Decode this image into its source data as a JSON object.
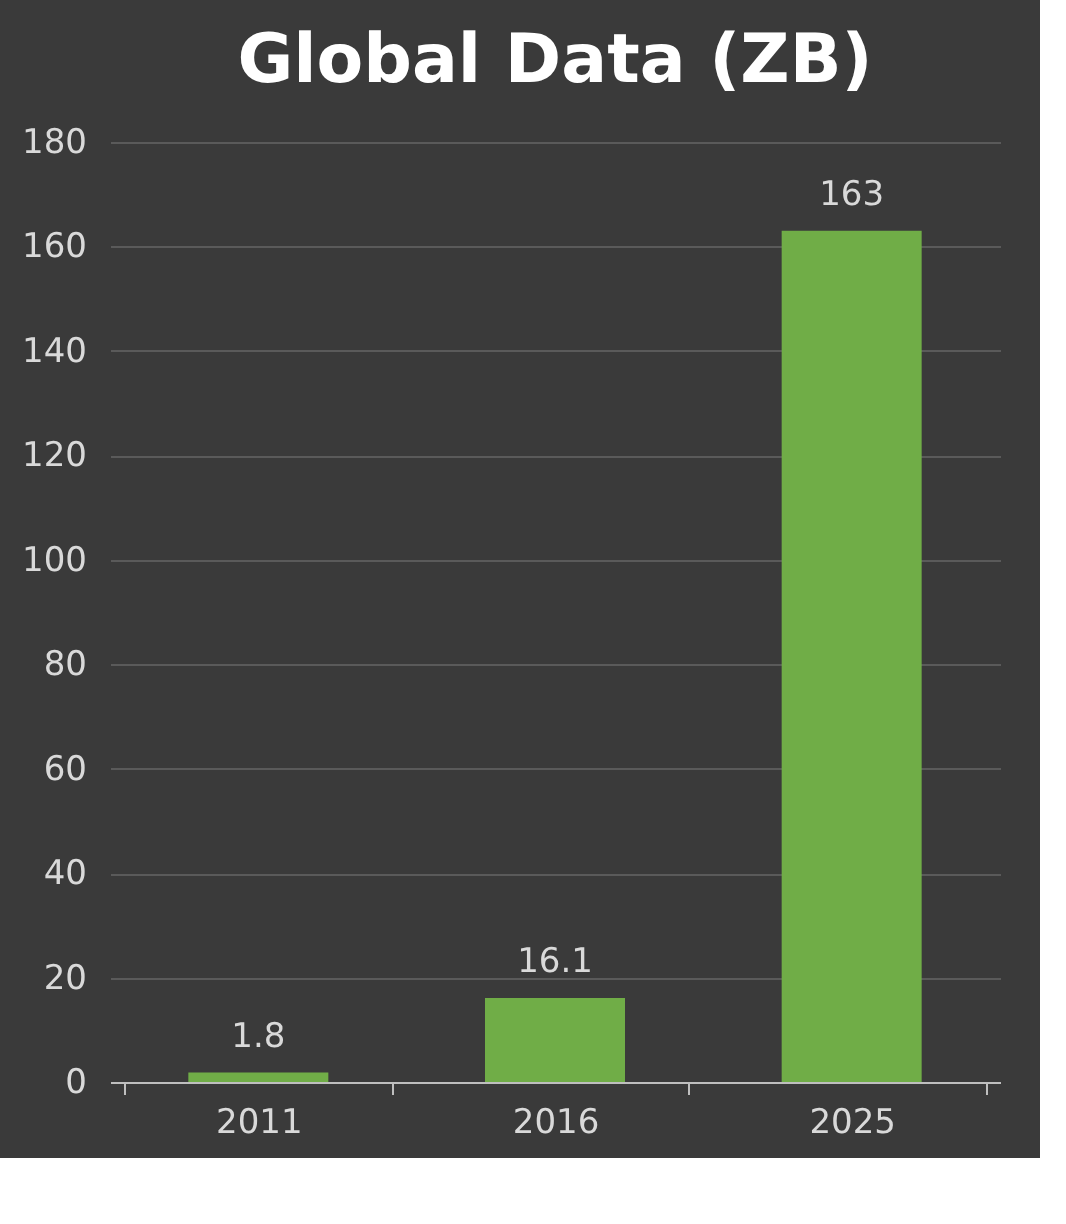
{
  "chart_data": {
    "type": "bar",
    "title": "Global Data (ZB)",
    "categories": [
      "2011",
      "2016",
      "2025"
    ],
    "values": [
      1.8,
      16.1,
      163
    ],
    "color": "#70ad47",
    "ylim": [
      0,
      180
    ],
    "yticks": [
      0,
      20,
      40,
      60,
      80,
      100,
      120,
      140,
      160,
      180
    ],
    "grid": "y",
    "data_labels": true
  }
}
